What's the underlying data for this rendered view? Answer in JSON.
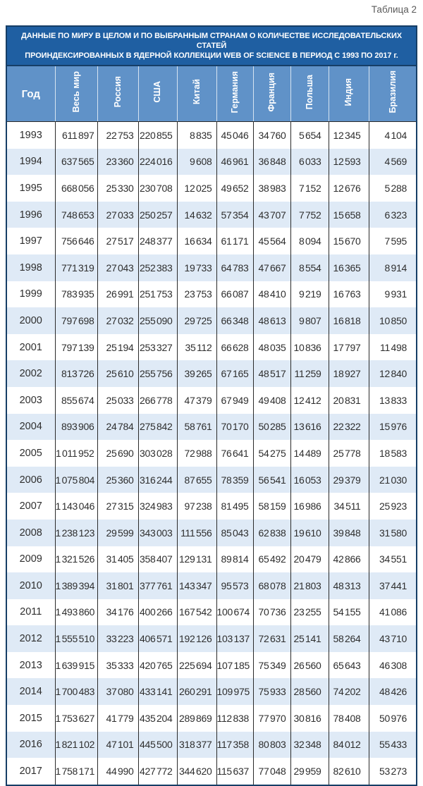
{
  "page": {
    "table_label": "Таблица 2"
  },
  "colors": {
    "title_bg": "#1F5FA2",
    "header_bg": "#6092C8",
    "row_alt": "#DFEAF6",
    "border_dark": "#163E66",
    "grid": "#2A2A2A",
    "text": "#2E2E2E",
    "label_gray": "#5A5A5A"
  },
  "table": {
    "title_line1": "ДАННЫЕ ПО МИРУ В ЦЕЛОМ И ПО ВЫБРАННЫМ СТРАНАМ О КОЛИЧЕСТВЕ ИССЛЕДОВАТЕЛЬСКИХ СТАТЕЙ",
    "title_line2": "ПРОИНДЕКСИРОВАННЫХ В ЯДЕРНОЙ КОЛЛЕКЦИИ WEB OF SCIENCE В ПЕРИОД С 1993 ПО 2017 г.",
    "columns": [
      "Год",
      "Весь мир",
      "Россия",
      "США",
      "Китай",
      "Германия",
      "Франция",
      "Польша",
      "Индия",
      "Бразилия"
    ],
    "rows": [
      [
        "1993",
        "611 897",
        "22 753",
        "220 855",
        "8 835",
        "45 046",
        "34 760",
        "5 654",
        "12 345",
        "4 104"
      ],
      [
        "1994",
        "637 565",
        "23 360",
        "224 016",
        "9 608",
        "46 961",
        "36 848",
        "6 033",
        "12 593",
        "4 569"
      ],
      [
        "1995",
        "668 056",
        "25 330",
        "230 708",
        "12 025",
        "49 652",
        "38 983",
        "7 152",
        "12 676",
        "5 288"
      ],
      [
        "1996",
        "748 653",
        "27 033",
        "250 257",
        "14 632",
        "57 354",
        "43 707",
        "7 752",
        "15 658",
        "6 323"
      ],
      [
        "1997",
        "756 646",
        "27 517",
        "248 377",
        "16 634",
        "61 171",
        "45 564",
        "8 094",
        "15 670",
        "7 595"
      ],
      [
        "1998",
        "771 319",
        "27 043",
        "252 383",
        "19 733",
        "64 783",
        "47 667",
        "8 554",
        "16 365",
        "8 914"
      ],
      [
        "1999",
        "783 935",
        "26 991",
        "251 753",
        "23 753",
        "66 087",
        "48 410",
        "9 219",
        "16 763",
        "9 931"
      ],
      [
        "2000",
        "797 698",
        "27 032",
        "255 090",
        "29 725",
        "66 348",
        "48 613",
        "9 807",
        "16 818",
        "10 850"
      ],
      [
        "2001",
        "797 139",
        "25 194",
        "253 327",
        "35 112",
        "66 628",
        "48 035",
        "10 836",
        "17 797",
        "11 498"
      ],
      [
        "2002",
        "813 726",
        "25 610",
        "255 756",
        "39 265",
        "67 165",
        "48 517",
        "11 259",
        "18 927",
        "12 840"
      ],
      [
        "2003",
        "855 674",
        "25 033",
        "266 778",
        "47 379",
        "67 949",
        "49 408",
        "12 412",
        "20 831",
        "13 833"
      ],
      [
        "2004",
        "893 906",
        "24 784",
        "275 842",
        "58 761",
        "70 170",
        "50 285",
        "13 616",
        "22 322",
        "15 976"
      ],
      [
        "2005",
        "1 011 952",
        "25 690",
        "303 028",
        "72 988",
        "76 641",
        "54 275",
        "14 489",
        "25 778",
        "18 583"
      ],
      [
        "2006",
        "1 075 804",
        "25 360",
        "316 244",
        "87 655",
        "78 359",
        "56 541",
        "16 053",
        "29 379",
        "21 030"
      ],
      [
        "2007",
        "1 143 046",
        "27 315",
        "324 983",
        "97 238",
        "81 495",
        "58 159",
        "16 986",
        "34 511",
        "25 923"
      ],
      [
        "2008",
        "1 238 123",
        "29 599",
        "343 003",
        "111 556",
        "85 043",
        "62 838",
        "19 610",
        "39 848",
        "31 580"
      ],
      [
        "2009",
        "1 321 526",
        "31 405",
        "358 407",
        "129 131",
        "89 814",
        "65 492",
        "20 479",
        "42 866",
        "34 551"
      ],
      [
        "2010",
        "1 389 394",
        "31 801",
        "377 761",
        "143 347",
        "95 573",
        "68 078",
        "21 803",
        "48 313",
        "37 441"
      ],
      [
        "2011",
        "1 493 860",
        "34 176",
        "400 266",
        "167 542",
        "100 674",
        "70 736",
        "23 255",
        "54 155",
        "41 086"
      ],
      [
        "2012",
        "1 555 510",
        "33 223",
        "406 571",
        "192 126",
        "103 137",
        "72 631",
        "25 141",
        "58 264",
        "43 710"
      ],
      [
        "2013",
        "1 639 915",
        "35 333",
        "420 765",
        "225 694",
        "107 185",
        "75 349",
        "26 560",
        "65 643",
        "46 308"
      ],
      [
        "2014",
        "1 700 483",
        "37 080",
        "433 141",
        "260 291",
        "109 975",
        "75 933",
        "28 560",
        "74 202",
        "48 426"
      ],
      [
        "2015",
        "1 753 627",
        "41 779",
        "435 204",
        "289 869",
        "112 838",
        "77 970",
        "30 816",
        "78 408",
        "50 976"
      ],
      [
        "2016",
        "1 821 102",
        "47 101",
        "445 500",
        "318 377",
        "117 358",
        "80 803",
        "32 348",
        "84 012",
        "55 433"
      ],
      [
        "2017",
        "1 758 171",
        "44 990",
        "427 772",
        "344 620",
        "115 637",
        "77 048",
        "29 959",
        "82 610",
        "53 273"
      ]
    ]
  }
}
